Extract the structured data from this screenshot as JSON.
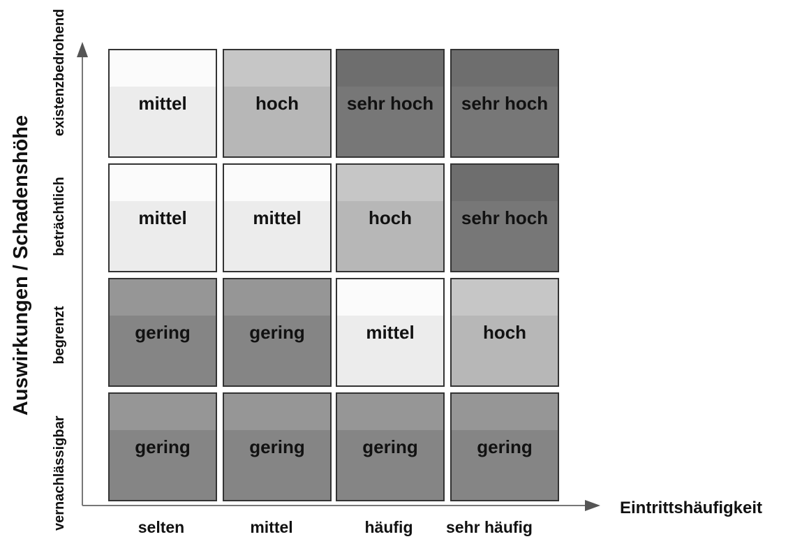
{
  "matrix": {
    "x_axis": {
      "title": "Eintrittshäufigkeit",
      "ticks": [
        "selten",
        "mittel",
        "häufig",
        "sehr häufig"
      ]
    },
    "y_axis": {
      "title": "Auswirkungen / Schadenshöhe",
      "ticks": [
        "vernachlässigbar",
        "begrenzt",
        "beträchtlich",
        "existenzbedrohend"
      ]
    },
    "rows": [
      {
        "impact": "existenzbedrohend",
        "cells": [
          "mittel",
          "hoch",
          "sehr hoch",
          "sehr hoch"
        ]
      },
      {
        "impact": "beträchtlich",
        "cells": [
          "mittel",
          "mittel",
          "hoch",
          "sehr hoch"
        ]
      },
      {
        "impact": "begrenzt",
        "cells": [
          "gering",
          "gering",
          "mittel",
          "hoch"
        ]
      },
      {
        "impact": "vernachlässigbar",
        "cells": [
          "gering",
          "gering",
          "gering",
          "gering"
        ]
      }
    ],
    "level_colors": {
      "gering": "#858585",
      "mittel": "#ececec",
      "hoch": "#b7b7b7",
      "sehr hoch": "#777777"
    }
  }
}
